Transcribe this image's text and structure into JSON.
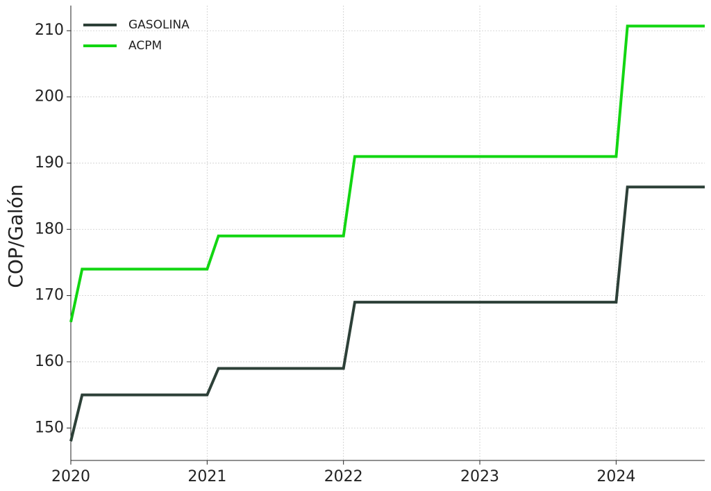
{
  "chart_data": {
    "type": "line",
    "y_label": "COP/Galón",
    "xlim": [
      2020,
      2024.65
    ],
    "xticks": [
      2020,
      2021,
      2022,
      2023,
      2024
    ],
    "ylim": [
      145.1,
      213.8
    ],
    "yticks": [
      150,
      160,
      170,
      180,
      190,
      200,
      210
    ],
    "grid": true,
    "legend": "upper left",
    "series": [
      {
        "name": "GASOLINA",
        "color": "#2d4038",
        "x": [
          2020,
          2020.083,
          2021,
          2021.083,
          2022,
          2022.083,
          2024,
          2024.083,
          2024.65
        ],
        "values": [
          148,
          155,
          155,
          159,
          159,
          169,
          169,
          186.4,
          186.4
        ]
      },
      {
        "name": "ACPM",
        "color": "#12d612",
        "x": [
          2020,
          2020.083,
          2021,
          2021.083,
          2022,
          2022.083,
          2024,
          2024.083,
          2024.65
        ],
        "values": [
          166,
          174,
          174,
          179,
          179,
          191,
          191,
          210.7,
          210.7
        ]
      }
    ]
  }
}
